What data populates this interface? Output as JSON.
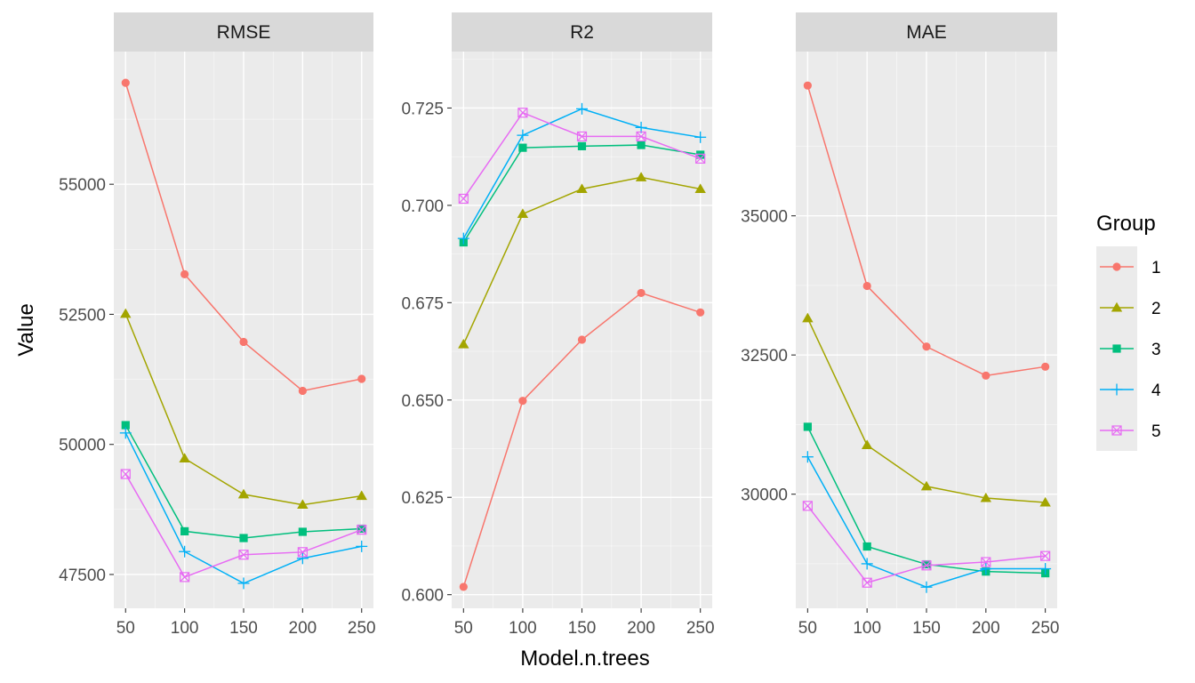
{
  "colors": {
    "panel_bg": "#EBEBEB",
    "strip_bg": "#D9D9D9",
    "grid_major": "#FFFFFF",
    "tick": "#333333",
    "series": [
      "#F8766D",
      "#A3A500",
      "#00BF7D",
      "#00B0F6",
      "#E76BF3"
    ]
  },
  "chart_data": {
    "type": "line",
    "facet_layout": "1x3 free y",
    "xlabel": "Model.n.trees",
    "ylabel": "Value",
    "x": [
      50,
      100,
      150,
      200,
      250
    ],
    "x_ticks": [
      "50",
      "100",
      "150",
      "200",
      "250"
    ],
    "grid": true,
    "legend": {
      "title": "Group",
      "position": "right",
      "entries": [
        {
          "label": "1",
          "shape": "circle",
          "color": "#F8766D"
        },
        {
          "label": "2",
          "shape": "triangle",
          "color": "#A3A500"
        },
        {
          "label": "3",
          "shape": "square",
          "color": "#00BF7D"
        },
        {
          "label": "4",
          "shape": "plus",
          "color": "#00B0F6"
        },
        {
          "label": "5",
          "shape": "boxed-x",
          "color": "#E76BF3"
        }
      ]
    },
    "panels": [
      {
        "title": "RMSE",
        "ylim": [
          46850,
          57550
        ],
        "y_ticks": [
          47500,
          50000,
          52500,
          55000
        ],
        "y_tick_labels": [
          "47500",
          "50000",
          "52500",
          "55000"
        ],
        "series": [
          {
            "name": "1",
            "values": [
              56950,
              53270,
              51970,
              51030,
              51260
            ]
          },
          {
            "name": "2",
            "values": [
              52510,
              49730,
              49040,
              48840,
              49010
            ]
          },
          {
            "name": "3",
            "values": [
              50370,
              48330,
              48200,
              48320,
              48380
            ]
          },
          {
            "name": "4",
            "values": [
              50220,
              47940,
              47330,
              47810,
              48040
            ]
          },
          {
            "name": "5",
            "values": [
              49430,
              47450,
              47880,
              47930,
              48360
            ]
          }
        ]
      },
      {
        "title": "R2",
        "ylim": [
          0.5965,
          0.7395
        ],
        "y_ticks": [
          0.6,
          0.625,
          0.65,
          0.675,
          0.7,
          0.725
        ],
        "y_tick_labels": [
          "0.600",
          "0.625",
          "0.650",
          "0.675",
          "0.700",
          "0.725"
        ],
        "series": [
          {
            "name": "1",
            "values": [
              0.602,
              0.6498,
              0.6655,
              0.6775,
              0.6725
            ]
          },
          {
            "name": "2",
            "values": [
              0.6643,
              0.6978,
              0.7042,
              0.7072,
              0.7042
            ]
          },
          {
            "name": "3",
            "values": [
              0.6905,
              0.7148,
              0.7152,
              0.7155,
              0.713
            ]
          },
          {
            "name": "4",
            "values": [
              0.6915,
              0.718,
              0.7248,
              0.72,
              0.7175
            ]
          },
          {
            "name": "5",
            "values": [
              0.7017,
              0.7238,
              0.7177,
              0.7177,
              0.712
            ]
          }
        ]
      },
      {
        "title": "MAE",
        "ylim": [
          27950,
          37950
        ],
        "y_ticks": [
          30000,
          32500,
          35000
        ],
        "y_tick_labels": [
          "30000",
          "32500",
          "35000"
        ],
        "series": [
          {
            "name": "1",
            "values": [
              37340,
              33740,
              32650,
              32130,
              32290
            ]
          },
          {
            "name": "2",
            "values": [
              33160,
              30880,
              30140,
              29930,
              29850
            ]
          },
          {
            "name": "3",
            "values": [
              31210,
              29060,
              28740,
              28610,
              28580
            ]
          },
          {
            "name": "4",
            "values": [
              30670,
              28750,
              28330,
              28660,
              28660
            ]
          },
          {
            "name": "5",
            "values": [
              29790,
              28410,
              28720,
              28780,
              28890
            ]
          }
        ]
      }
    ]
  }
}
